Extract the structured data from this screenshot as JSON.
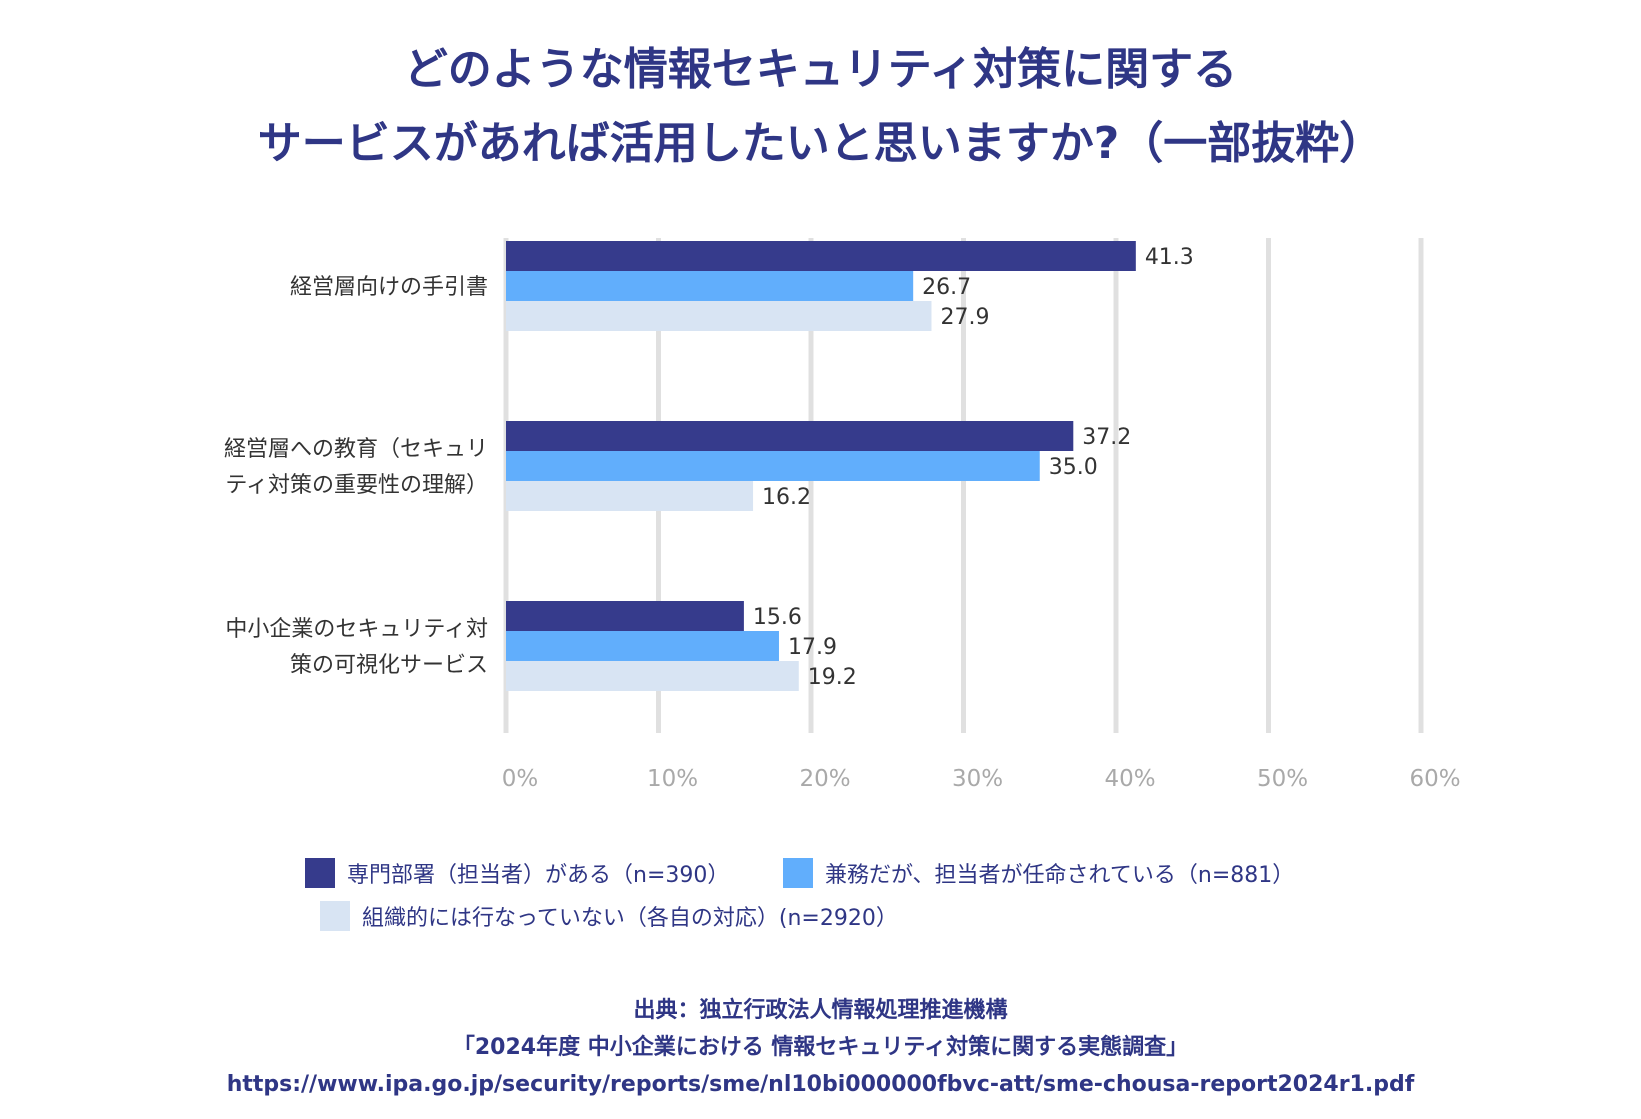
{
  "chart_data": {
    "type": "bar",
    "orientation": "horizontal",
    "title": [
      "どのような情報セキュリティ対策に関する",
      "サービスがあれば活用したいと思いますか?（一部抜粋）"
    ],
    "categories": [
      [
        "経営層向けの手引書"
      ],
      [
        "経営層への教育（セキュリ",
        "ティ対策の重要性の理解）"
      ],
      [
        "中小企業のセキュリティ対",
        "策の可視化サービス"
      ]
    ],
    "series": [
      {
        "name": "専門部署（担当者）がある（n=390）",
        "color": "#363b8c",
        "values": [
          41.3,
          37.2,
          15.6
        ]
      },
      {
        "name": "兼務だが、担当者が任命されている（n=881）",
        "color": "#61aefc",
        "values": [
          26.7,
          35.0,
          17.9
        ]
      },
      {
        "name": "組織的には行なっていない（各自の対応）(n=2920）",
        "color": "#d8e4f3",
        "values": [
          27.9,
          16.2,
          19.2
        ]
      }
    ],
    "xlim": [
      0,
      60
    ],
    "xticks": [
      "0%",
      "10%",
      "20%",
      "30%",
      "40%",
      "50%",
      "60%"
    ],
    "grid": true,
    "legend_position": "bottom"
  },
  "source": {
    "line1": "出典：独立行政法人情報処理推進機構",
    "line2": "「2024年度 中小企業における 情報セキュリティ対策に関する実態調査」",
    "line3": "https://www.ipa.go.jp/security/reports/sme/nl10bi000000fbvc-att/sme-chousa-report2024r1.pdf"
  }
}
